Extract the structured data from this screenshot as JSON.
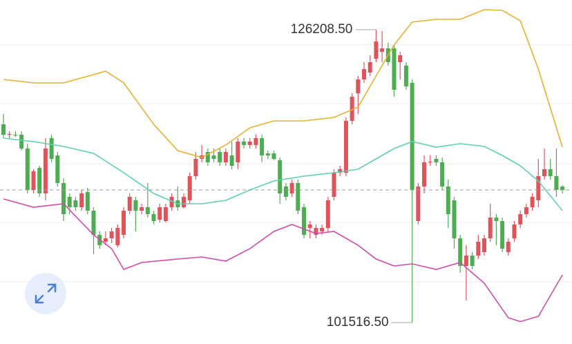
{
  "chart_data": {
    "type": "candlestick",
    "up_color": "#e0535b",
    "down_color": "#4cae50",
    "ylim": [
      99709,
      128713
    ],
    "gridlines": [
      124927,
      119977,
      114911,
      109960,
      104951
    ],
    "open": [
      118230,
      117356,
      117356,
      117356,
      116191,
      112697,
      114561,
      112406,
      117065,
      115609,
      113280,
      112115,
      111824,
      111241,
      112522,
      110950,
      108912,
      108329,
      108620,
      108038,
      108912,
      110950,
      111824,
      110950,
      111241,
      110659,
      110193,
      110076,
      111241,
      111824,
      111241,
      111824,
      113862,
      115318,
      115900,
      115609,
      115900,
      115027,
      115609,
      115027,
      116774,
      116483,
      116483,
      117065,
      115784,
      115784,
      115201,
      112988,
      112406,
      113280,
      111241,
      109494,
      108912,
      109203,
      109494,
      112115,
      114153,
      114153,
      118521,
      120851,
      122015,
      122598,
      123763,
      124345,
      124636,
      124636,
      123471,
      123180,
      121724,
      110076,
      112988,
      115027,
      115318,
      115027,
      112988,
      111824,
      108620,
      106291,
      107164,
      107164,
      107456,
      108620,
      110368,
      110076,
      107456,
      108620,
      109785,
      110659,
      111241,
      111824,
      113862,
      114444,
      113862,
      112988
    ],
    "close": [
      117356,
      117414,
      117298,
      116191,
      112697,
      114269,
      112406,
      116191,
      115318,
      113280,
      110659,
      111241,
      111241,
      112406,
      110950,
      108912,
      108038,
      108620,
      109203,
      109494,
      110950,
      112115,
      110950,
      111241,
      110659,
      110076,
      111241,
      111241,
      112115,
      111241,
      112115,
      113862,
      115318,
      115609,
      115027,
      115318,
      115027,
      115900,
      114735,
      116774,
      116483,
      116774,
      117065,
      115609,
      115609,
      115318,
      112406,
      112115,
      113280,
      110950,
      108912,
      109785,
      109494,
      109494,
      111824,
      114153,
      114444,
      118521,
      120559,
      122015,
      122889,
      123471,
      125219,
      124636,
      123471,
      121142,
      124054,
      121433,
      112697,
      112988,
      115027,
      115085,
      115027,
      112988,
      110659,
      108620,
      106291,
      107164,
      106291,
      108329,
      108620,
      110368,
      110076,
      107747,
      108329,
      109785,
      110659,
      111241,
      112115,
      113862,
      114444,
      113862,
      112697,
      112697
    ],
    "high": [
      119103,
      117647,
      117647,
      117647,
      116599,
      114444,
      114735,
      117065,
      117356,
      115900,
      113687,
      112406,
      112115,
      112697,
      112872,
      111241,
      109203,
      109203,
      109494,
      109785,
      111241,
      112406,
      112115,
      111532,
      113280,
      110950,
      111532,
      111532,
      112406,
      112988,
      112406,
      114153,
      115900,
      116483,
      116191,
      116191,
      116191,
      116191,
      116774,
      117065,
      117065,
      117065,
      117356,
      117356,
      116016,
      116016,
      115434,
      113280,
      113571,
      113571,
      111532,
      110076,
      109785,
      109785,
      112115,
      114444,
      114735,
      118812,
      120851,
      122307,
      123471,
      124054,
      126208.5,
      126092,
      125102,
      124927,
      124345,
      123471,
      122015,
      113280,
      115609,
      115609,
      115609,
      115434,
      113571,
      112115,
      108912,
      108038,
      107456,
      108912,
      108912,
      111532,
      110659,
      110368,
      108620,
      110076,
      110950,
      111532,
      112406,
      115318,
      116191,
      115318,
      116191,
      113105
    ],
    "low": [
      117065,
      117065,
      117182,
      116016,
      112406,
      112406,
      112115,
      111824,
      115027,
      112988,
      110076,
      110659,
      110950,
      110950,
      110659,
      107281,
      107747,
      108038,
      108213,
      107863,
      108620,
      110659,
      109203,
      110659,
      110368,
      109785,
      109960,
      109960,
      110950,
      110950,
      111125,
      111532,
      113571,
      115027,
      114735,
      115027,
      114735,
      114735,
      114444,
      114444,
      116191,
      116191,
      116191,
      115027,
      115318,
      115201,
      111532,
      111824,
      112115,
      110659,
      108620,
      108620,
      108620,
      108912,
      109203,
      111824,
      113862,
      113862,
      118230,
      119103,
      121724,
      122307,
      123471,
      123471,
      123180,
      120559,
      122015,
      121142,
      101516.5,
      109785,
      112406,
      114735,
      114735,
      112697,
      109494,
      107747,
      105708,
      103379,
      105999,
      106873,
      107164,
      108329,
      108038,
      107456,
      107164,
      108329,
      109494,
      110368,
      110950,
      111241,
      113571,
      113571,
      112115,
      112406
    ],
    "bands": [
      {
        "color": "#e8b030",
        "x": [
          0,
          5,
          10,
          15,
          17,
          20,
          25,
          29,
          33,
          37,
          41,
          45,
          50,
          55,
          59,
          62,
          65,
          68,
          72,
          76,
          80,
          83,
          86,
          89,
          93
        ],
        "values": [
          122015,
          121724,
          121724,
          122423,
          122714,
          121724,
          118230,
          116016,
          115434,
          116483,
          117939,
          118521,
          118521,
          118812,
          119686,
          122307,
          124927,
          126849,
          127082,
          127082,
          127898,
          127839,
          126966,
          122889,
          116308
        ]
      },
      {
        "color": "#5fcfb0",
        "x": [
          0,
          5,
          10,
          15,
          20,
          25,
          29,
          33,
          37,
          41,
          45,
          50,
          55,
          59,
          62,
          65,
          68,
          72,
          76,
          80,
          83,
          86,
          89,
          93
        ],
        "values": [
          117065,
          116774,
          116366,
          115784,
          114153,
          112406,
          111532,
          111532,
          111824,
          112697,
          113454,
          113862,
          114153,
          114444,
          115318,
          116191,
          116774,
          116308,
          116599,
          116366,
          115609,
          114735,
          113454,
          110950
        ]
      },
      {
        "color": "#d04aa8",
        "x": [
          0,
          5,
          10,
          15,
          18,
          20,
          23,
          29,
          33,
          37,
          41,
          45,
          48,
          52,
          55,
          59,
          62,
          65,
          68,
          72,
          76,
          80,
          84,
          86,
          89,
          93
        ],
        "values": [
          111940,
          111241,
          111532,
          108912,
          107747,
          105999,
          106582,
          106873,
          107048,
          106698,
          107747,
          109203,
          109785,
          109028,
          109203,
          108038,
          106873,
          106291,
          106466,
          105999,
          106582,
          104835,
          101923,
          101600,
          102039,
          105534
        ]
      }
    ],
    "annotations": [
      {
        "value": 126208.5,
        "label": "126208.50",
        "index": 62
      },
      {
        "value": 101516.5,
        "label": "101516.50",
        "index": 68
      }
    ]
  }
}
